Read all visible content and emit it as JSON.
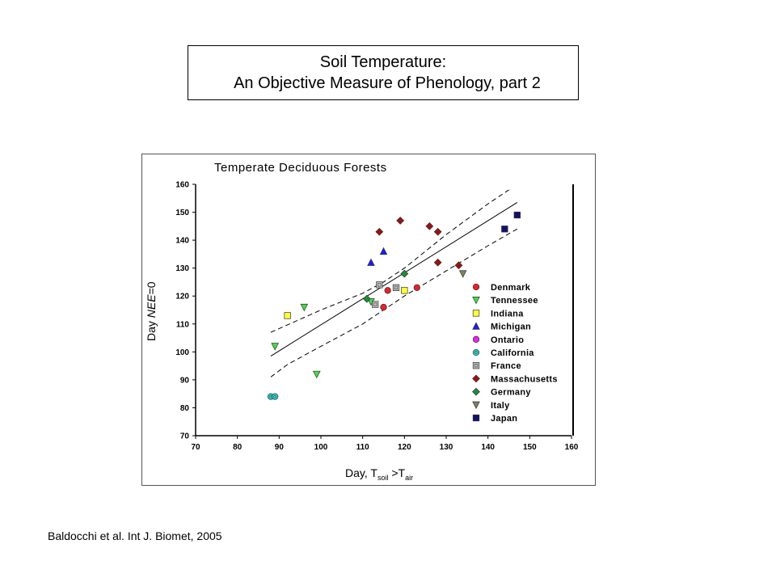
{
  "slide": {
    "title_line1": "Soil Temperature:",
    "title_line2": "An Objective Measure of Phenology, part 2",
    "citation": "Baldocchi et al. Int J. Biomet, 2005"
  },
  "chart_data": {
    "type": "scatter",
    "title": "Temperate Deciduous Forests",
    "xlabel_parts": [
      "Day, T",
      "soil",
      " >T",
      "air"
    ],
    "ylabel_parts": [
      "Day ",
      "NEE",
      "=0"
    ],
    "xlim": [
      70,
      160
    ],
    "ylim": [
      70,
      160
    ],
    "xticks": [
      70,
      80,
      90,
      100,
      110,
      120,
      130,
      140,
      150,
      160
    ],
    "yticks": [
      70,
      80,
      90,
      100,
      110,
      120,
      130,
      140,
      150,
      160
    ],
    "grid": false,
    "legend_position": "right",
    "fit_line": [
      [
        88,
        98.5
      ],
      [
        147,
        153.5
      ]
    ],
    "upper_band": [
      [
        88,
        107
      ],
      [
        100,
        115
      ],
      [
        110,
        121
      ],
      [
        115,
        125
      ],
      [
        120,
        130
      ],
      [
        130,
        142
      ],
      [
        140,
        153
      ],
      [
        145,
        158
      ]
    ],
    "lower_band": [
      [
        88,
        91
      ],
      [
        92,
        95.5
      ],
      [
        100,
        102
      ],
      [
        110,
        110
      ],
      [
        120,
        120
      ],
      [
        130,
        129
      ],
      [
        140,
        138
      ],
      [
        147,
        144
      ]
    ],
    "series": [
      {
        "name": "Denmark",
        "marker": "circle",
        "color": "#e8202a",
        "points": [
          [
            115,
            116
          ],
          [
            116,
            122
          ],
          [
            123,
            123
          ]
        ]
      },
      {
        "name": "Tennessee",
        "marker": "triangle-down",
        "color": "#40e040",
        "points": [
          [
            89,
            102
          ],
          [
            96,
            116
          ],
          [
            99,
            92
          ],
          [
            112,
            118
          ]
        ]
      },
      {
        "name": "Indiana",
        "marker": "square",
        "color": "#ffff33",
        "points": [
          [
            92,
            113
          ],
          [
            120,
            122
          ]
        ]
      },
      {
        "name": "Michigan",
        "marker": "triangle-up",
        "color": "#1a1aff",
        "points": [
          [
            112,
            132
          ],
          [
            115,
            136
          ]
        ]
      },
      {
        "name": "Ontario",
        "marker": "circle",
        "color": "#ee22ee",
        "points": []
      },
      {
        "name": "California",
        "marker": "circle",
        "color": "#33cccc",
        "points": [
          [
            88,
            84
          ],
          [
            89,
            84
          ]
        ]
      },
      {
        "name": "France",
        "marker": "square",
        "color": "#c0c0c0",
        "points": [
          [
            113,
            117
          ],
          [
            114,
            124
          ],
          [
            118,
            123
          ]
        ]
      },
      {
        "name": "Massachusetts",
        "marker": "diamond",
        "color": "#a01010",
        "points": [
          [
            114,
            143
          ],
          [
            119,
            147
          ],
          [
            126,
            145
          ],
          [
            128,
            143
          ],
          [
            128,
            132
          ],
          [
            133,
            131
          ]
        ]
      },
      {
        "name": "Germany",
        "marker": "diamond",
        "color": "#1e8c3a",
        "points": [
          [
            111,
            119
          ],
          [
            120,
            128
          ]
        ]
      },
      {
        "name": "Italy",
        "marker": "triangle-down",
        "color": "#808060",
        "points": [
          [
            134,
            128
          ]
        ]
      },
      {
        "name": "Japan",
        "marker": "square",
        "color": "#101070",
        "points": [
          [
            144,
            144
          ],
          [
            147,
            149
          ]
        ]
      }
    ]
  }
}
